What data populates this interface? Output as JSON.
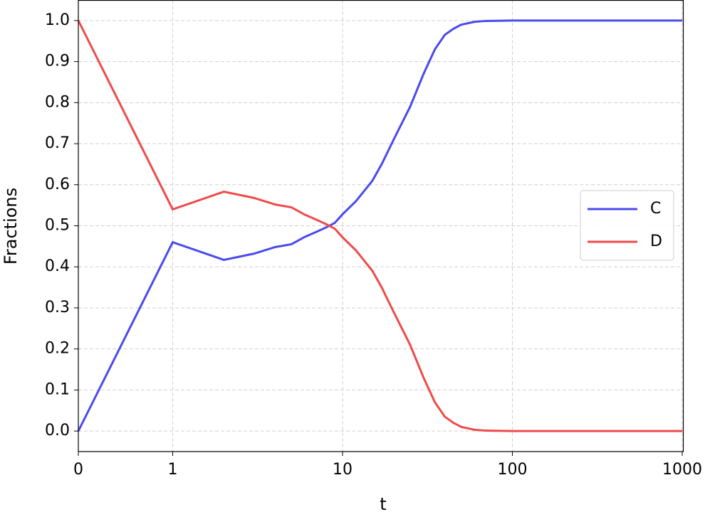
{
  "chart_data": {
    "type": "line",
    "xlabel": "t",
    "ylabel": "Fractions",
    "xscale": "symlog",
    "linthresh": 1,
    "linscale": 0.5,
    "x": [
      0,
      1,
      2,
      3,
      4,
      5,
      6,
      7,
      8,
      9,
      10,
      12,
      15,
      17,
      20,
      25,
      30,
      35,
      40,
      45,
      50,
      60,
      70,
      100,
      1000
    ],
    "series": [
      {
        "name": "C",
        "color": "#4a4af0",
        "values": [
          0,
          0.46,
          0.417,
          0.432,
          0.448,
          0.455,
          0.473,
          0.485,
          0.496,
          0.507,
          0.528,
          0.56,
          0.61,
          0.65,
          0.71,
          0.79,
          0.87,
          0.93,
          0.965,
          0.98,
          0.99,
          0.997,
          0.999,
          1.0,
          1.0
        ]
      },
      {
        "name": "D",
        "color": "#f04a4a",
        "values": [
          1,
          0.54,
          0.583,
          0.568,
          0.552,
          0.545,
          0.527,
          0.515,
          0.504,
          0.493,
          0.472,
          0.44,
          0.39,
          0.35,
          0.29,
          0.21,
          0.13,
          0.07,
          0.035,
          0.02,
          0.01,
          0.003,
          0.001,
          0,
          0
        ]
      }
    ],
    "xlim": [
      0,
      1000
    ],
    "xticks": [
      0,
      1,
      10,
      100,
      1000
    ],
    "ylim": [
      -0.05,
      1.05
    ],
    "yticks": [
      {
        "value": 0,
        "label": "0.0"
      },
      0.1,
      0.2,
      0.3,
      0.4,
      0.5,
      0.6,
      0.7,
      0.8,
      0.9,
      {
        "value": 1,
        "label": "1.0"
      }
    ],
    "grid": true,
    "legend": "center right"
  }
}
